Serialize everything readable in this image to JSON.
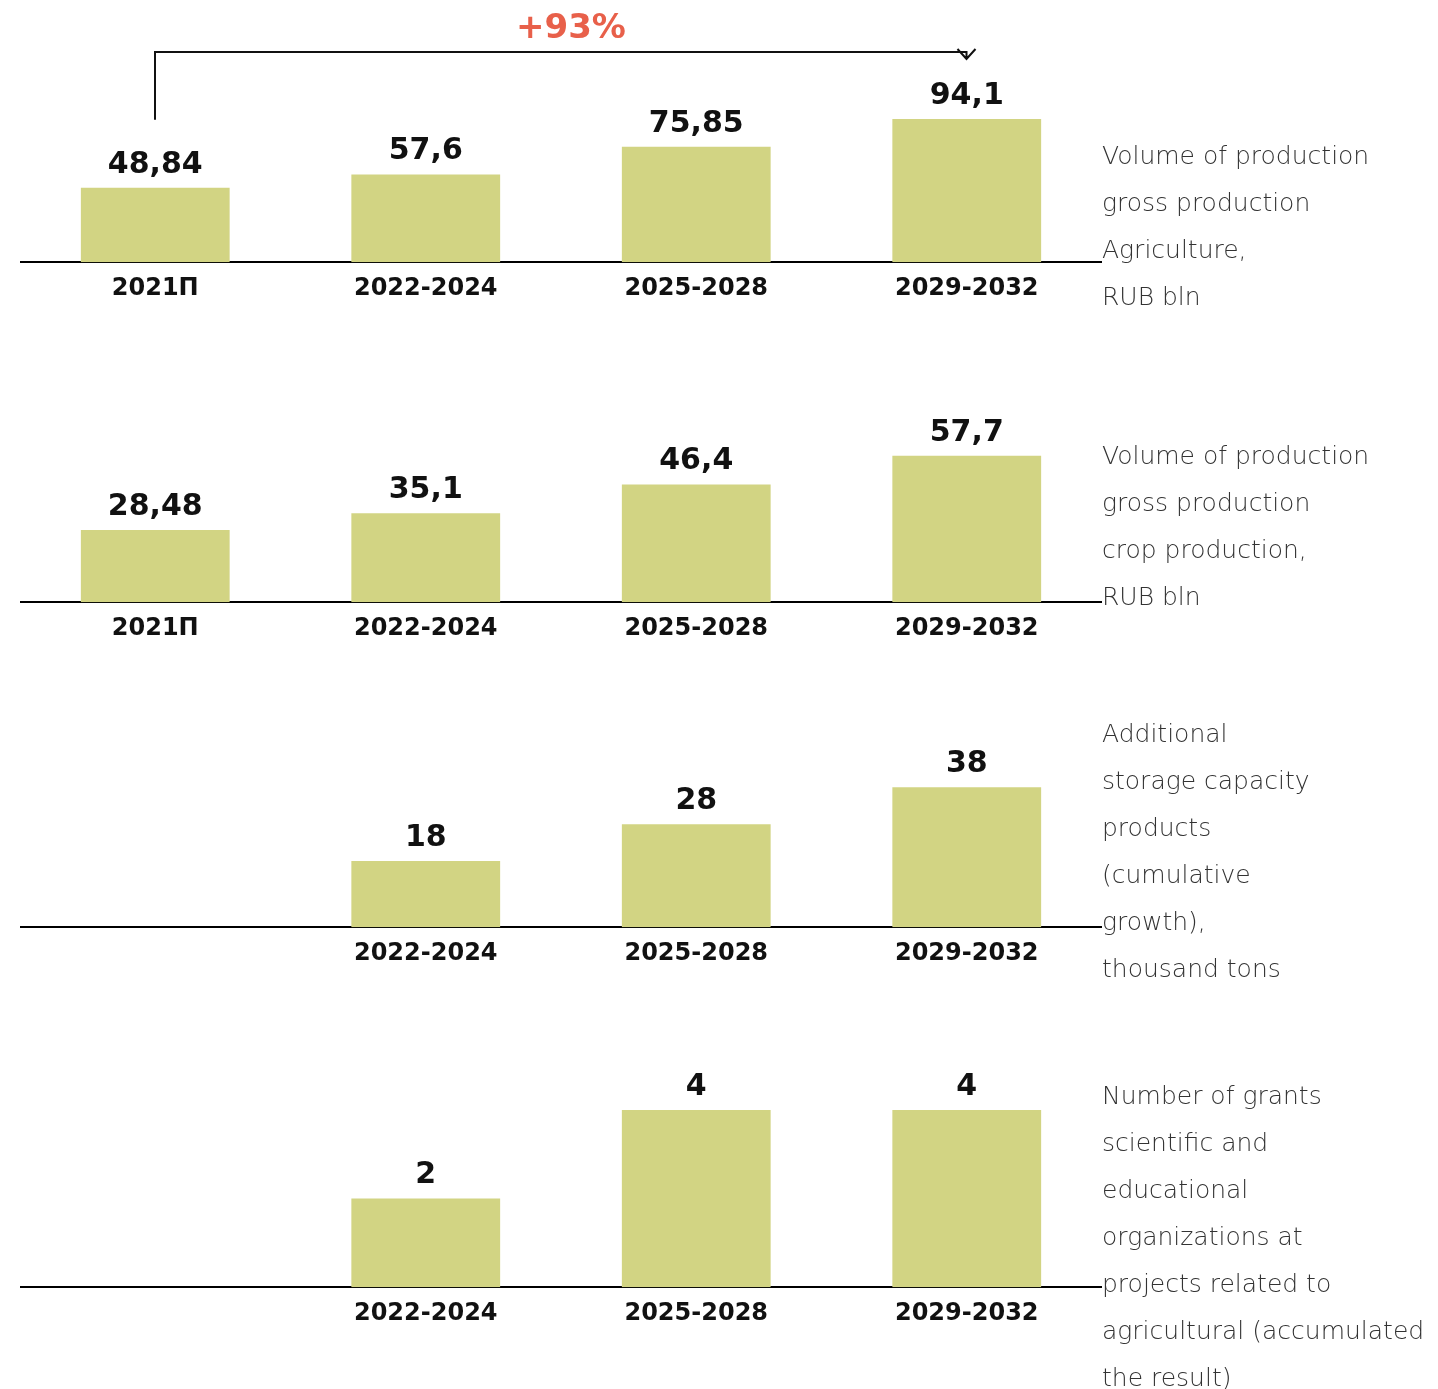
{
  "chart_data": [
    {
      "type": "bar",
      "ylabel": "Volume of production\ngross production\nAgriculture,\nRUB bln",
      "categories": [
        "2021П",
        "2022-2024",
        "2025-2028",
        "2029-2032"
      ],
      "values": [
        48.84,
        57.6,
        75.85,
        94.1
      ],
      "value_labels": [
        "48,84",
        "57,6",
        "75,85",
        "94,1"
      ],
      "color": "#d2d483",
      "grid": false,
      "legend": false,
      "tick_labels": "x",
      "annotations": [
        "+93%"
      ]
    },
    {
      "type": "bar",
      "ylabel": "Volume of production\ngross production\ncrop production,\nRUB bln",
      "categories": [
        "2021П",
        "2022-2024",
        "2025-2028",
        "2029-2032"
      ],
      "values": [
        28.48,
        35.1,
        46.4,
        57.7
      ],
      "value_labels": [
        "28,48",
        "35,1",
        "46,4",
        "57,7"
      ],
      "color": "#d2d483",
      "grid": false,
      "legend": false,
      "tick_labels": "x"
    },
    {
      "type": "bar",
      "ylabel": "Additional\nstorage capacity\nproducts\n(cumulative\ngrowth),\nthousand tons",
      "categories": [
        null,
        "2022-2024",
        "2025-2028",
        "2029-2032"
      ],
      "values": [
        null,
        18,
        28,
        38
      ],
      "value_labels": [
        null,
        "18",
        "28",
        "38"
      ],
      "color": "#d2d483",
      "grid": false,
      "legend": false,
      "tick_labels": "x"
    },
    {
      "type": "bar",
      "ylabel": "Number of grants\nscientific and\neducational\norganizations at\nprojects related to\nagricultural (accumulated\nthe result)",
      "categories": [
        null,
        "2022-2024",
        "2025-2028",
        "2029-2032"
      ],
      "values": [
        null,
        2,
        4,
        4
      ],
      "value_labels": [
        null,
        "2",
        "4",
        "4"
      ],
      "color": "#d2d483",
      "grid": false,
      "legend": false,
      "tick_labels": "x"
    }
  ]
}
